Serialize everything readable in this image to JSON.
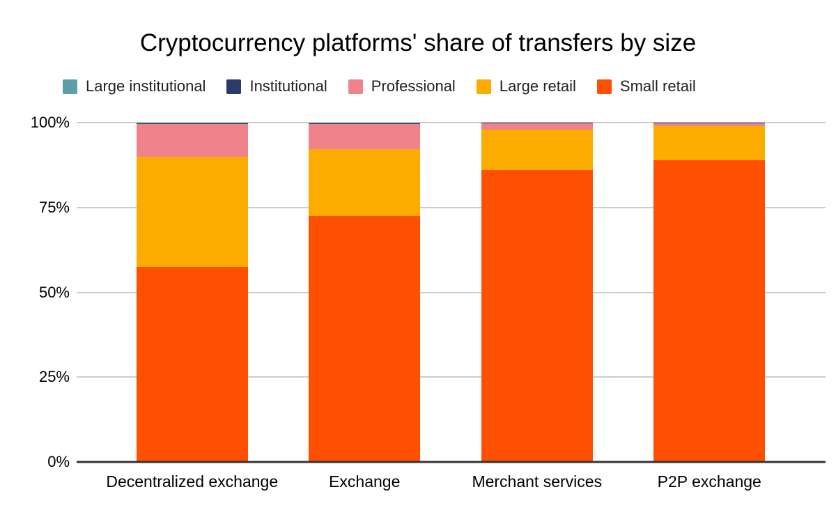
{
  "title": "Cryptocurrency platforms' share of transfers by size",
  "colors": {
    "background": "#ffffff",
    "gridline": "#cccccc",
    "axis_line": "#333333",
    "text": "#000000"
  },
  "chart_data": {
    "type": "bar",
    "stacked": true,
    "stack_unit": "percent",
    "title": "Cryptocurrency platforms' share of transfers by size",
    "categories": [
      "Decentralized exchange",
      "Exchange",
      "Merchant services",
      "P2P exchange"
    ],
    "series": [
      {
        "name": "Large institutional",
        "color": "#5C9EAC",
        "values": [
          0.1,
          0.1,
          0.05,
          0.05
        ]
      },
      {
        "name": "Institutional",
        "color": "#2A3A6B",
        "values": [
          0.4,
          0.4,
          0.15,
          0.15
        ]
      },
      {
        "name": "Professional",
        "color": "#F0828C",
        "values": [
          9.5,
          7.2,
          1.8,
          0.8
        ]
      },
      {
        "name": "Large retail",
        "color": "#FCAB00",
        "values": [
          32.5,
          19.8,
          12.0,
          10.0
        ]
      },
      {
        "name": "Small retail",
        "color": "#FE5000",
        "values": [
          57.5,
          72.5,
          86.0,
          89.0
        ]
      }
    ],
    "xlabel": "",
    "ylabel": "",
    "y_ticks": [
      "0%",
      "25%",
      "50%",
      "75%",
      "100%"
    ],
    "ylim": [
      0,
      100
    ],
    "legend_position": "top",
    "grid": true
  }
}
